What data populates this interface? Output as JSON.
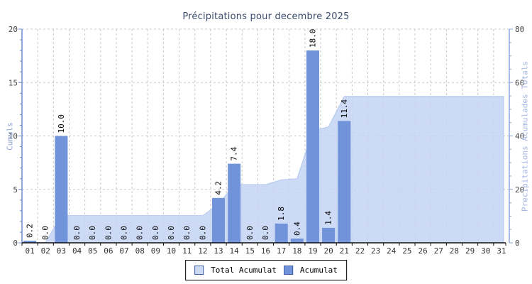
{
  "title": "Précipitations pour decembre 2025",
  "colors": {
    "title_text": "#3b4c6e",
    "bar_fill": "#7193d9",
    "area_fill": "#c4d4f3",
    "area_edge": "#b2c6ee",
    "grid": "#c9c9c9",
    "left_axis_line": "#6e8ccd",
    "right_axis_line": "#8aa5dd",
    "x_axis_line": "#111111",
    "tick_label": "#444444",
    "day_label": "#333333",
    "value_label": "#000000",
    "left_axis_title": "#8ea6d8",
    "right_axis_title": "#a3b5e3",
    "legend_total_swatch": "#ccdaf6",
    "legend_acumulat_swatch": "#7193d9"
  },
  "left_axis": {
    "title": "Cumuls",
    "min": 0,
    "max": 20,
    "major_ticks": [
      0,
      5,
      10,
      15,
      20
    ],
    "minor_step": 1
  },
  "right_axis": {
    "title": "Precipitations Acumulades Totals",
    "min": 0,
    "max": 80,
    "major_ticks": [
      0,
      20,
      40,
      60,
      80
    ],
    "minor_step": 5
  },
  "legend": {
    "items": [
      {
        "label": "Total Acumulat",
        "color": "#ccdaf6"
      },
      {
        "label": "Acumulat",
        "color": "#7193d9"
      }
    ]
  },
  "chart_data": {
    "type": "bar+area",
    "title": "Précipitations pour decembre 2025",
    "xlabel": "",
    "ylabel_left": "Cumuls",
    "ylabel_right": "Precipitations Acumulades Totals",
    "ylim_left": [
      0,
      20
    ],
    "ylim_right": [
      0,
      80
    ],
    "grid": true,
    "legend_position": "bottom-center",
    "categories": [
      "01",
      "02",
      "03",
      "04",
      "05",
      "06",
      "07",
      "08",
      "09",
      "10",
      "11",
      "12",
      "13",
      "14",
      "15",
      "16",
      "17",
      "18",
      "19",
      "20",
      "21",
      "22",
      "23",
      "24",
      "25",
      "26",
      "27",
      "28",
      "29",
      "30",
      "31"
    ],
    "series": [
      {
        "name": "Acumulat",
        "type": "bar",
        "yaxis": "left",
        "values": [
          0.2,
          0.0,
          10.0,
          0.0,
          0.0,
          0.0,
          0.0,
          0.0,
          0.0,
          0.0,
          0.0,
          0.0,
          4.2,
          7.4,
          0.0,
          0.0,
          1.8,
          0.4,
          18.0,
          1.4,
          11.4,
          null,
          null,
          null,
          null,
          null,
          null,
          null,
          null,
          null,
          null
        ]
      },
      {
        "name": "Total Acumulat",
        "type": "area",
        "yaxis": "right",
        "values": [
          0.2,
          0.2,
          10.2,
          10.2,
          10.2,
          10.2,
          10.2,
          10.2,
          10.2,
          10.2,
          10.2,
          10.2,
          14.4,
          21.8,
          21.8,
          21.8,
          23.6,
          24.0,
          42.0,
          43.4,
          54.8,
          54.8,
          54.8,
          54.8,
          54.8,
          54.8,
          54.8,
          54.8,
          54.8,
          54.8,
          54.8
        ]
      }
    ]
  }
}
